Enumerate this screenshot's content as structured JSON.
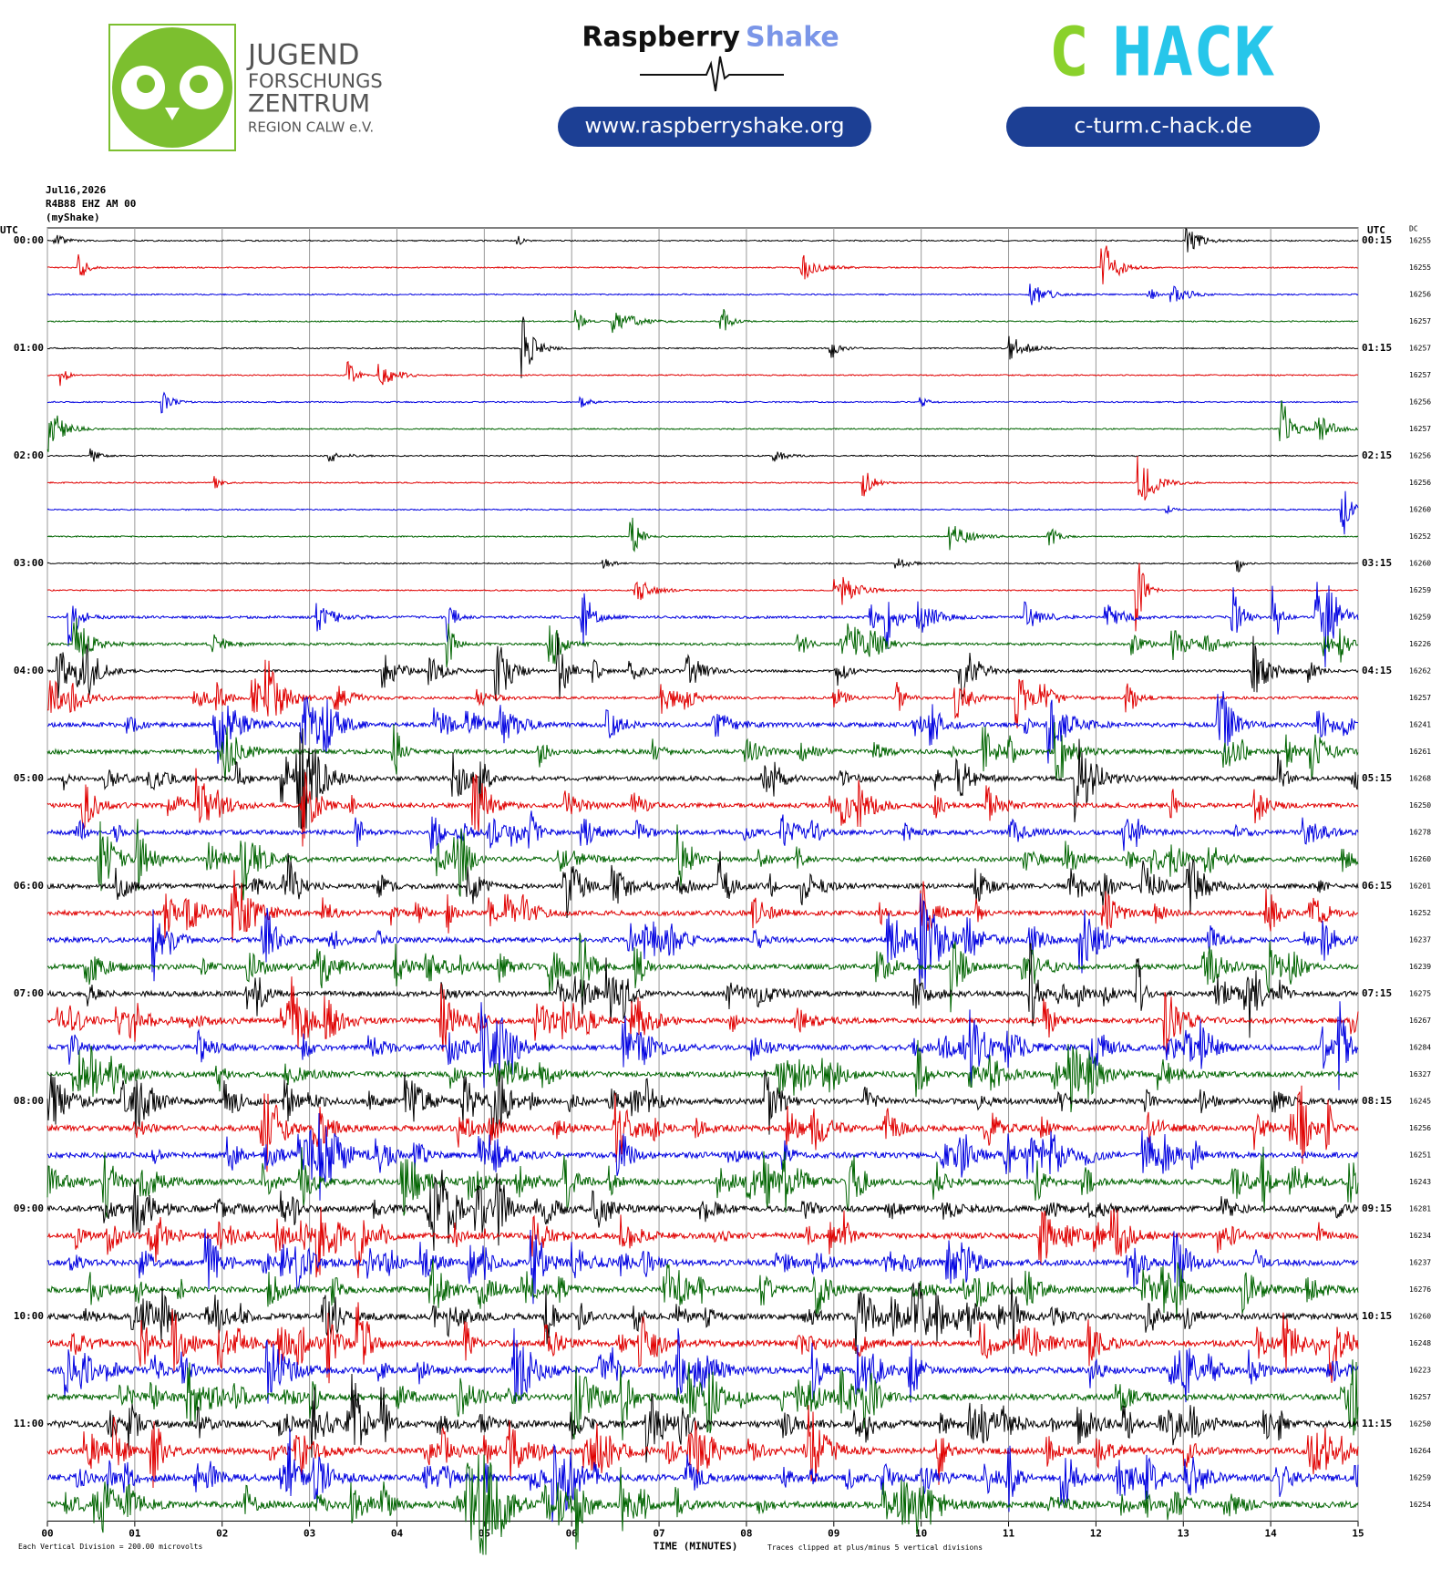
{
  "header": {
    "date": "Jul16,2026",
    "station": "R4B88 EHZ AM 00",
    "source": "(myShake)"
  },
  "logos": {
    "jfz": [
      "JUGEND",
      "FORSCHUNGS",
      "ZENTRUM",
      "REGION CALW e.V."
    ],
    "rs_name": "Raspberry",
    "rs_shake": "Shake",
    "rs_url": "www.raspberryshake.org",
    "chack_c": "C",
    "chack_rest": "HACK",
    "chack_url": "c-turm.c-hack.de"
  },
  "helicorder": {
    "left_header": "UTC",
    "right_header": "UTC",
    "dc_header": "DC",
    "left_labels": [
      "00:00",
      "01:00",
      "02:00",
      "03:00",
      "04:00",
      "05:00",
      "06:00",
      "07:00",
      "08:00",
      "09:00",
      "10:00",
      "11:00"
    ],
    "right_labels": [
      "00:15",
      "01:15",
      "02:15",
      "03:15",
      "04:15",
      "05:15",
      "06:15",
      "07:15",
      "08:15",
      "09:15",
      "10:15",
      "11:15"
    ],
    "colors": [
      "#000000",
      "#e00000",
      "#0000e0",
      "#006400"
    ],
    "dc": [
      16255,
      16255,
      16256,
      16257,
      16257,
      16257,
      16256,
      16257,
      16256,
      16256,
      16260,
      16252,
      16260,
      16259,
      16259,
      16226,
      16262,
      16257,
      16241,
      16261,
      16268,
      16250,
      16278,
      16260,
      16201,
      16252,
      16237,
      16239,
      16275,
      16267,
      16284,
      16327,
      16245,
      16256,
      16251,
      16243,
      16281,
      16234,
      16237,
      16276,
      16260,
      16248,
      16223,
      16257,
      16250,
      16264,
      16259,
      16254
    ],
    "x_ticks": [
      "00",
      "01",
      "02",
      "03",
      "04",
      "05",
      "06",
      "07",
      "08",
      "09",
      "10",
      "11",
      "12",
      "13",
      "14",
      "15"
    ],
    "x_label": "TIME (MINUTES)",
    "scale_note": "Each Vertical Division =  200.00 microvolts",
    "clip_note": "Traces clipped at plus/minus 5 vertical divisions"
  }
}
